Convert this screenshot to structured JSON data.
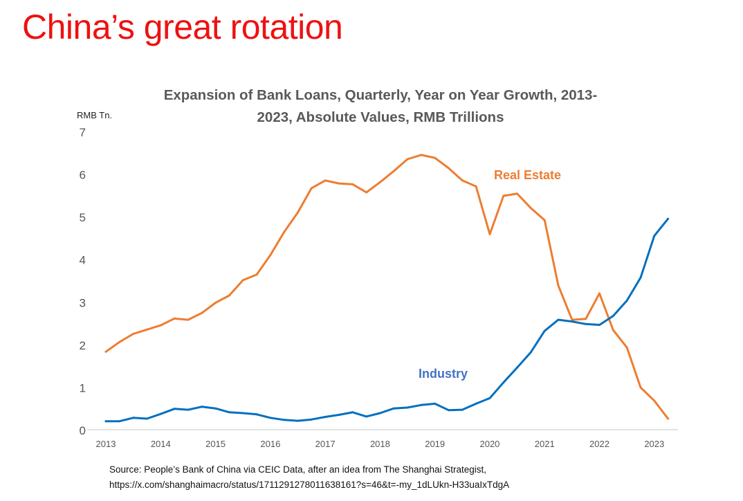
{
  "slide": {
    "title": "China’s great rotation"
  },
  "source": {
    "line1": "Source: People’s Bank of China via CEIC Data, after an idea from The Shanghai Strategist,",
    "line2": "https://x.com/shanghaimacro/status/1711291278011638161?s=46&t=-my_1dLUkn-H33uaIxTdgA"
  },
  "colors": {
    "title": "#ee1111",
    "real_estate": "#ed7d31",
    "industry": "#0070c0",
    "industry_label": "#4472c4",
    "axis": "#d9d9d9",
    "tick_text": "#555555"
  },
  "chart_data": {
    "type": "line",
    "title": "Expansion of  Bank Loans, Quarterly, Year on Year Growth, 2013-2023, Absolute Values,  RMB Trillions",
    "title_line1": "Expansion of  Bank Loans, Quarterly, Year on Year Growth, 2013-",
    "title_line2": "2023, Absolute Values,  RMB Trillions",
    "ylabel": "RMB Tn.",
    "xlabel": "",
    "ylim": [
      0,
      7
    ],
    "yticks": [
      "0",
      "1",
      "2",
      "3",
      "4",
      "5",
      "6",
      "7"
    ],
    "xtick_labels": [
      "2013",
      "2014",
      "2015",
      "2016",
      "2017",
      "2018",
      "2019",
      "2020",
      "2021",
      "2022",
      "2023"
    ],
    "x": [
      "2013Q1",
      "2013Q2",
      "2013Q3",
      "2013Q4",
      "2014Q1",
      "2014Q2",
      "2014Q3",
      "2014Q4",
      "2015Q1",
      "2015Q2",
      "2015Q3",
      "2015Q4",
      "2016Q1",
      "2016Q2",
      "2016Q3",
      "2016Q4",
      "2017Q1",
      "2017Q2",
      "2017Q3",
      "2017Q4",
      "2018Q1",
      "2018Q2",
      "2018Q3",
      "2018Q4",
      "2019Q1",
      "2019Q2",
      "2019Q3",
      "2019Q4",
      "2020Q1",
      "2020Q2",
      "2020Q3",
      "2020Q4",
      "2021Q1",
      "2021Q2",
      "2021Q3",
      "2021Q4",
      "2022Q1",
      "2022Q2",
      "2022Q3",
      "2022Q4",
      "2023Q1",
      "2023Q2"
    ],
    "grid": false,
    "legend": "inline labels",
    "series": [
      {
        "name": "Real Estate",
        "label": "Real Estate",
        "values": [
          1.83,
          2.06,
          2.25,
          2.35,
          2.45,
          2.61,
          2.58,
          2.74,
          2.98,
          3.15,
          3.51,
          3.64,
          4.1,
          4.64,
          5.1,
          5.67,
          5.85,
          5.78,
          5.76,
          5.57,
          5.81,
          6.07,
          6.35,
          6.45,
          6.38,
          6.14,
          5.85,
          5.71,
          4.59,
          5.49,
          5.54,
          5.2,
          4.92,
          3.38,
          2.58,
          2.6,
          3.2,
          2.34,
          1.93,
          0.99,
          0.68,
          0.26
        ]
      },
      {
        "name": "Industry",
        "label": "Industry",
        "values": [
          0.2,
          0.2,
          0.28,
          0.26,
          0.37,
          0.49,
          0.47,
          0.54,
          0.5,
          0.41,
          0.39,
          0.36,
          0.28,
          0.23,
          0.21,
          0.24,
          0.3,
          0.35,
          0.41,
          0.31,
          0.39,
          0.5,
          0.52,
          0.58,
          0.61,
          0.46,
          0.47,
          0.61,
          0.74,
          1.11,
          1.46,
          1.82,
          2.32,
          2.58,
          2.54,
          2.48,
          2.46,
          2.67,
          3.03,
          3.57,
          4.55,
          4.95
        ]
      }
    ]
  }
}
